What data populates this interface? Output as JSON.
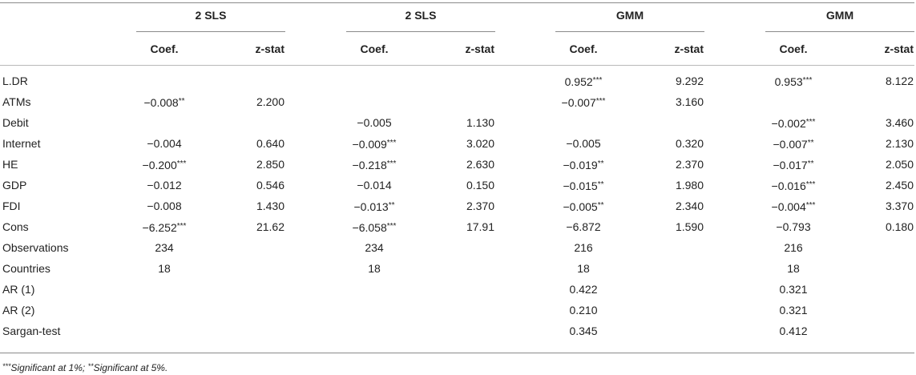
{
  "groups": [
    "2 SLS",
    "2 SLS",
    "GMM",
    "GMM"
  ],
  "subheaders": {
    "coef": "Coef.",
    "z": "z-stat"
  },
  "rows": [
    {
      "label": "L.DR",
      "cells": [
        [
          "",
          ""
        ],
        [
          "",
          ""
        ],
        [
          "",
          ""
        ],
        [
          "",
          ""
        ],
        [
          "0.952",
          "***"
        ],
        [
          "9.292",
          ""
        ],
        [
          "0.953",
          "***"
        ],
        [
          "8.122",
          ""
        ]
      ]
    },
    {
      "label": "ATMs",
      "cells": [
        [
          "−0.008",
          "**"
        ],
        [
          "2.200",
          ""
        ],
        [
          "",
          ""
        ],
        [
          "",
          ""
        ],
        [
          "−0.007",
          "***"
        ],
        [
          "3.160",
          ""
        ],
        [
          "",
          ""
        ],
        [
          "",
          ""
        ]
      ]
    },
    {
      "label": "Debit",
      "cells": [
        [
          "",
          ""
        ],
        [
          "",
          ""
        ],
        [
          "−0.005",
          ""
        ],
        [
          "1.130",
          ""
        ],
        [
          "",
          ""
        ],
        [
          "",
          ""
        ],
        [
          "−0.002",
          "***"
        ],
        [
          "3.460",
          ""
        ]
      ]
    },
    {
      "label": "Internet",
      "cells": [
        [
          "−0.004",
          ""
        ],
        [
          "0.640",
          ""
        ],
        [
          "−0.009",
          "***"
        ],
        [
          "3.020",
          ""
        ],
        [
          "−0.005",
          ""
        ],
        [
          "0.320",
          ""
        ],
        [
          "−0.007",
          "**"
        ],
        [
          "2.130",
          ""
        ]
      ]
    },
    {
      "label": "HE",
      "cells": [
        [
          "−0.200",
          "***"
        ],
        [
          "2.850",
          ""
        ],
        [
          "−0.218",
          "***"
        ],
        [
          "2.630",
          ""
        ],
        [
          "−0.019",
          "**"
        ],
        [
          "2.370",
          ""
        ],
        [
          "−0.017",
          "**"
        ],
        [
          "2.050",
          ""
        ]
      ]
    },
    {
      "label": "GDP",
      "cells": [
        [
          "−0.012",
          ""
        ],
        [
          "0.546",
          ""
        ],
        [
          "−0.014",
          ""
        ],
        [
          "0.150",
          ""
        ],
        [
          "−0.015",
          "**"
        ],
        [
          "1.980",
          ""
        ],
        [
          "−0.016",
          "***"
        ],
        [
          "2.450",
          ""
        ]
      ]
    },
    {
      "label": "FDI",
      "cells": [
        [
          "−0.008",
          ""
        ],
        [
          "1.430",
          ""
        ],
        [
          "−0.013",
          "**"
        ],
        [
          "2.370",
          ""
        ],
        [
          "−0.005",
          "**"
        ],
        [
          "2.340",
          ""
        ],
        [
          "−0.004",
          "***"
        ],
        [
          "3.370",
          ""
        ]
      ]
    },
    {
      "label": "Cons",
      "cells": [
        [
          "−6.252",
          "***"
        ],
        [
          "21.62",
          ""
        ],
        [
          "−6.058",
          "***"
        ],
        [
          "17.91",
          ""
        ],
        [
          "−6.872",
          ""
        ],
        [
          "1.590",
          ""
        ],
        [
          "−0.793",
          ""
        ],
        [
          "0.180",
          ""
        ]
      ]
    },
    {
      "label": "Observations",
      "cells": [
        [
          "234",
          ""
        ],
        [
          "",
          ""
        ],
        [
          "234",
          ""
        ],
        [
          "",
          ""
        ],
        [
          "216",
          ""
        ],
        [
          "",
          ""
        ],
        [
          "216",
          ""
        ],
        [
          "",
          ""
        ]
      ]
    },
    {
      "label": "Countries",
      "cells": [
        [
          "18",
          ""
        ],
        [
          "",
          ""
        ],
        [
          "18",
          ""
        ],
        [
          "",
          ""
        ],
        [
          "18",
          ""
        ],
        [
          "",
          ""
        ],
        [
          "18",
          ""
        ],
        [
          "",
          ""
        ]
      ]
    },
    {
      "label": "AR (1)",
      "cells": [
        [
          "",
          ""
        ],
        [
          "",
          ""
        ],
        [
          "",
          ""
        ],
        [
          "",
          ""
        ],
        [
          "0.422",
          ""
        ],
        [
          "",
          ""
        ],
        [
          "0.321",
          ""
        ],
        [
          "",
          ""
        ]
      ]
    },
    {
      "label": "AR (2)",
      "cells": [
        [
          "",
          ""
        ],
        [
          "",
          ""
        ],
        [
          "",
          ""
        ],
        [
          "",
          ""
        ],
        [
          "0.210",
          ""
        ],
        [
          "",
          ""
        ],
        [
          "0.321",
          ""
        ],
        [
          "",
          ""
        ]
      ]
    },
    {
      "label": "Sargan-test",
      "cells": [
        [
          "",
          ""
        ],
        [
          "",
          ""
        ],
        [
          "",
          ""
        ],
        [
          "",
          ""
        ],
        [
          "0.345",
          ""
        ],
        [
          "",
          ""
        ],
        [
          "0.412",
          ""
        ],
        [
          "",
          ""
        ]
      ]
    }
  ],
  "footnote": {
    "sig1_stars": "***",
    "sig1_text": "Significant at 1%; ",
    "sig5_stars": "**",
    "sig5_text": "Significant at 5%."
  }
}
